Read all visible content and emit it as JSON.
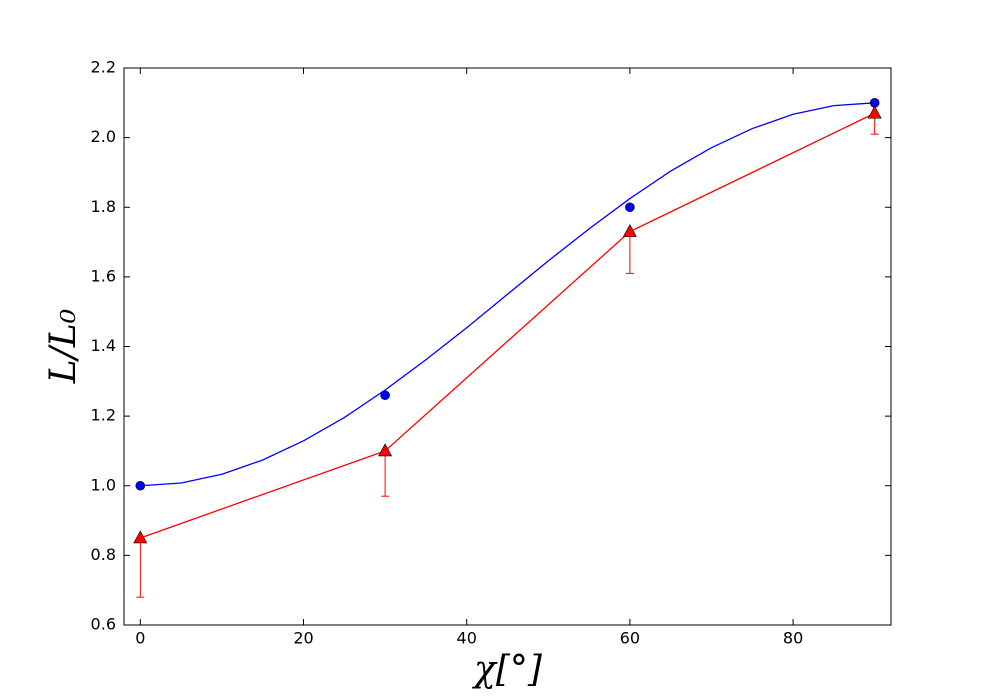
{
  "chart_data": {
    "type": "line",
    "xlabel": "χ[°]",
    "ylabel": "L/L₀",
    "xlim": [
      -2,
      92
    ],
    "ylim": [
      0.6,
      2.2
    ],
    "xticks": [
      0,
      20,
      40,
      60,
      80
    ],
    "yticks": [
      0.6,
      0.8,
      {
        "value": 1.0,
        "label": "1.0"
      },
      1.2,
      1.4,
      1.6,
      1.8,
      {
        "value": 2.0,
        "label": "2.0"
      },
      2.2
    ],
    "series": [
      {
        "color": "#0000ff",
        "line": true,
        "x": [
          0,
          5,
          10,
          15,
          20,
          25,
          30,
          35,
          40,
          45,
          50,
          55,
          60,
          65,
          70,
          75,
          80,
          85,
          90
        ],
        "values": [
          1.0,
          1.008,
          1.033,
          1.074,
          1.129,
          1.196,
          1.275,
          1.362,
          1.454,
          1.55,
          1.646,
          1.738,
          1.825,
          1.904,
          1.971,
          2.026,
          2.067,
          2.092,
          2.1
        ]
      },
      {
        "color": "#0000ff",
        "marker": "circle",
        "x": [
          0,
          30,
          60,
          90
        ],
        "values": [
          1.0,
          1.26,
          1.8,
          2.1
        ]
      },
      {
        "color": "#ff0000",
        "line": true,
        "marker": "triangle",
        "x": [
          0,
          30,
          60,
          90
        ],
        "values": [
          0.85,
          1.1,
          1.73,
          2.07
        ],
        "errors_lower": [
          0.17,
          0.13,
          0.12,
          0.06
        ]
      }
    ]
  }
}
